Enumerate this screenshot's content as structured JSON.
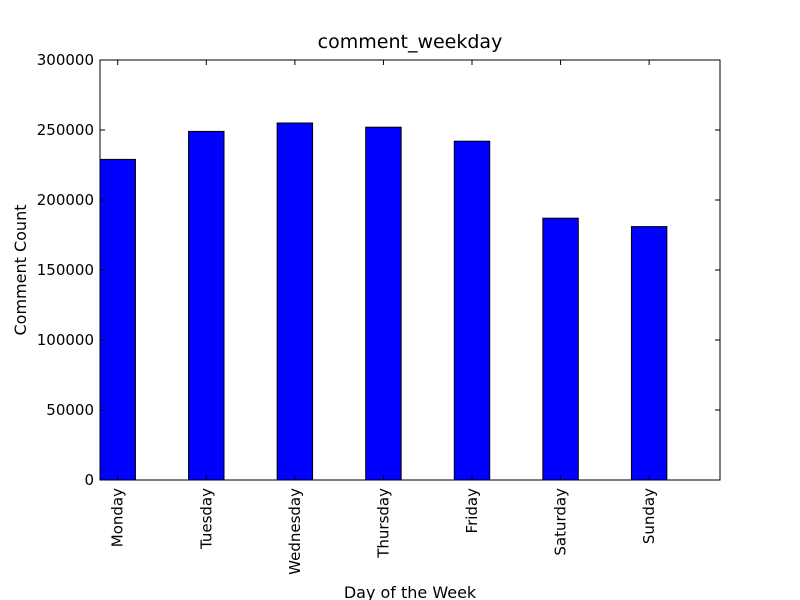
{
  "chart_data": {
    "type": "bar",
    "title": "comment_weekday",
    "xlabel": "Day of the Week",
    "ylabel": "Comment Count",
    "categories": [
      "Monday",
      "Tuesday",
      "Wednesday",
      "Thursday",
      "Friday",
      "Saturday",
      "Sunday"
    ],
    "values": [
      229000,
      249000,
      255000,
      252000,
      242000,
      187000,
      181000
    ],
    "ylim": [
      0,
      300000
    ],
    "yticks": [
      "0",
      "50000",
      "100000",
      "150000",
      "200000",
      "250000",
      "300000"
    ],
    "grid": false,
    "bar_color": "#0000ff",
    "edge_color": "#000000"
  }
}
